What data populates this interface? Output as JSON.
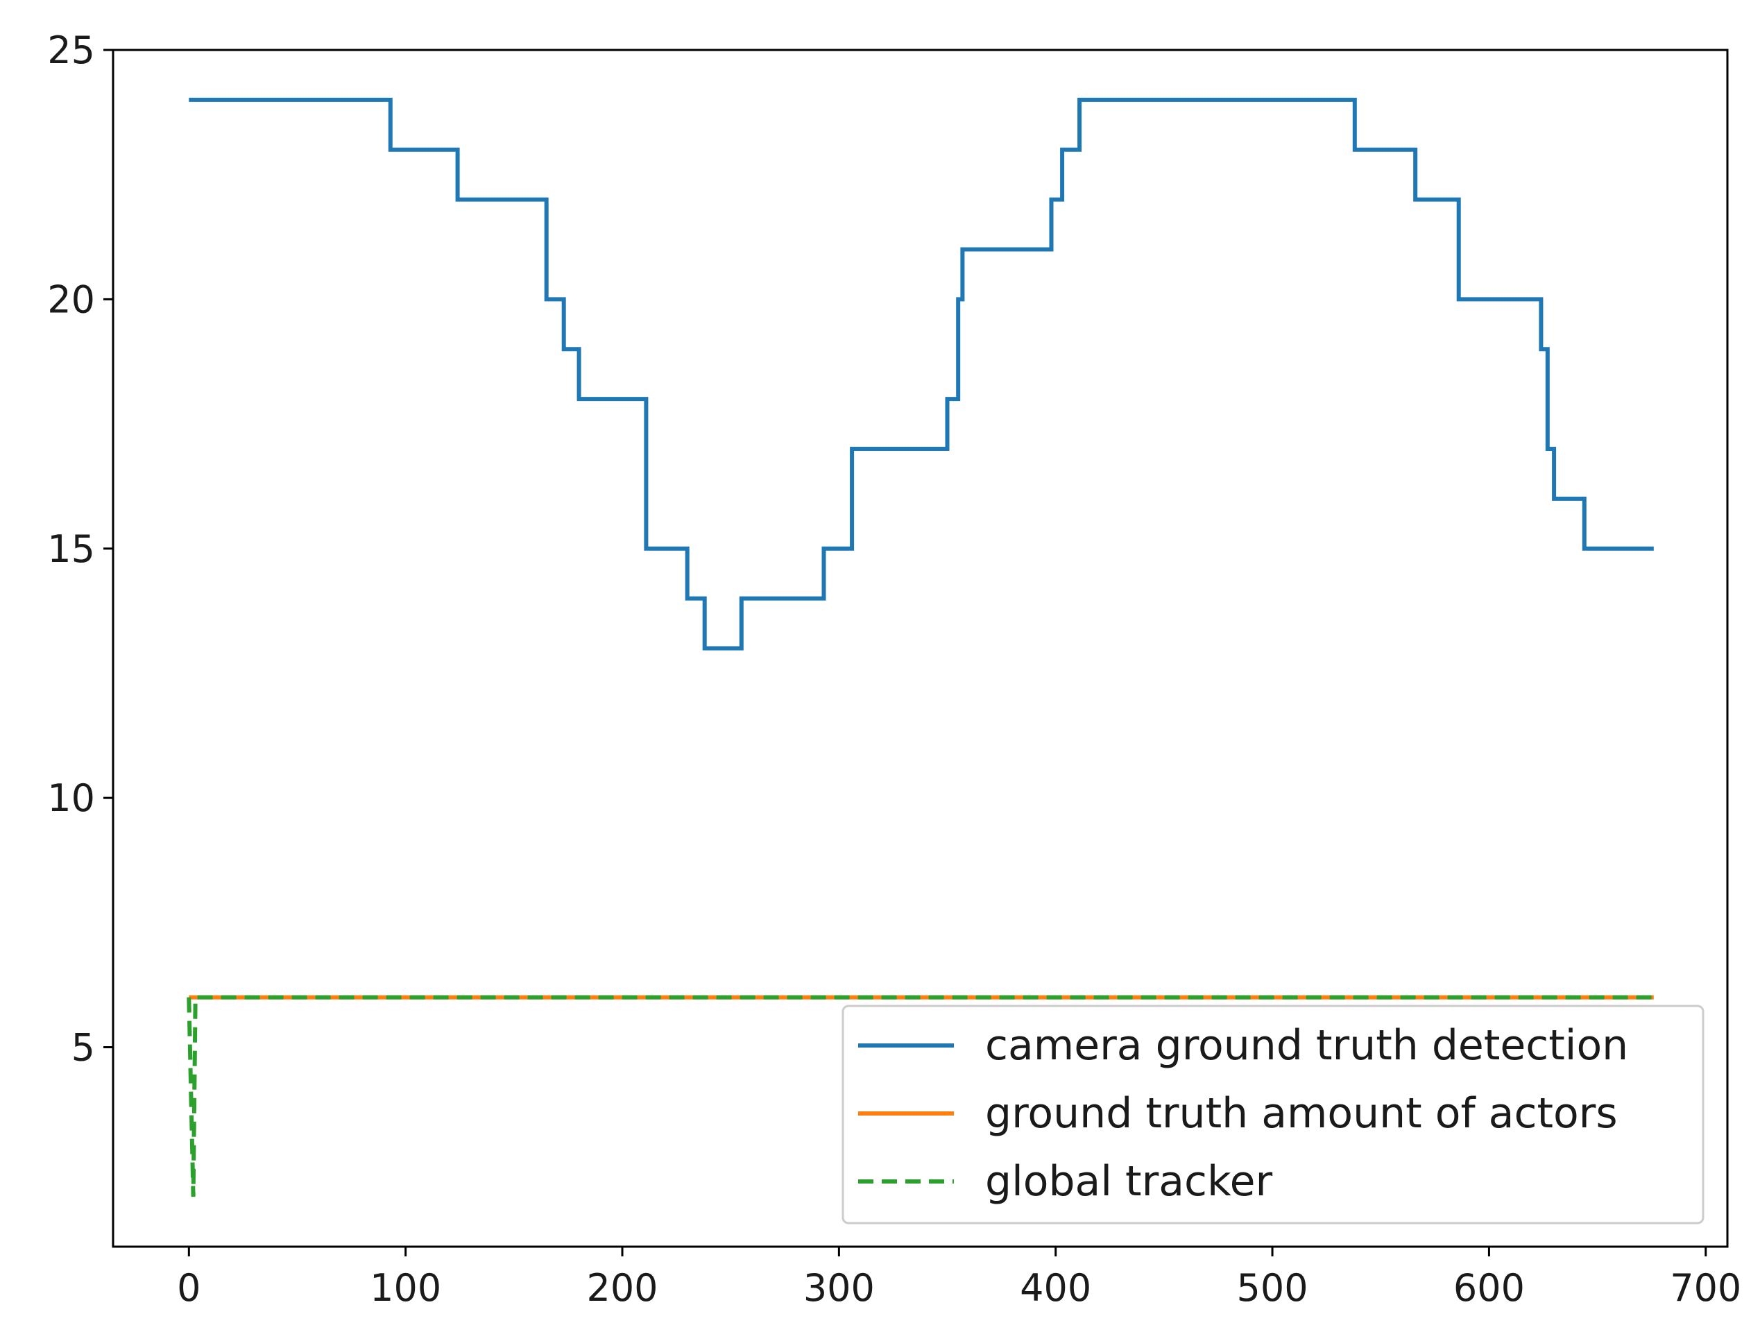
{
  "chart_data": {
    "type": "line",
    "xlim": [
      -35,
      710
    ],
    "ylim": [
      1,
      25
    ],
    "xticks": [
      0,
      100,
      200,
      300,
      400,
      500,
      600,
      700
    ],
    "yticks": [
      5,
      10,
      15,
      20,
      25
    ],
    "grid": false,
    "legend_position": "lower right",
    "series": [
      {
        "name": "camera ground truth detection",
        "color": "#1f77b4",
        "style": "solid",
        "step": true,
        "points": [
          [
            0,
            24
          ],
          [
            93,
            24
          ],
          [
            93,
            23
          ],
          [
            124,
            23
          ],
          [
            124,
            22
          ],
          [
            165,
            22
          ],
          [
            165,
            20
          ],
          [
            173,
            20
          ],
          [
            173,
            19
          ],
          [
            180,
            19
          ],
          [
            180,
            18
          ],
          [
            211,
            18
          ],
          [
            211,
            15
          ],
          [
            230,
            15
          ],
          [
            230,
            14
          ],
          [
            238,
            14
          ],
          [
            238,
            13
          ],
          [
            255,
            13
          ],
          [
            255,
            14
          ],
          [
            293,
            14
          ],
          [
            293,
            15
          ],
          [
            306,
            15
          ],
          [
            306,
            17
          ],
          [
            350,
            17
          ],
          [
            350,
            18
          ],
          [
            355,
            18
          ],
          [
            355,
            20
          ],
          [
            357,
            20
          ],
          [
            357,
            21
          ],
          [
            398,
            21
          ],
          [
            398,
            22
          ],
          [
            403,
            22
          ],
          [
            403,
            23
          ],
          [
            411,
            23
          ],
          [
            411,
            24
          ],
          [
            538,
            24
          ],
          [
            538,
            23
          ],
          [
            566,
            23
          ],
          [
            566,
            22
          ],
          [
            586,
            22
          ],
          [
            586,
            20
          ],
          [
            624,
            20
          ],
          [
            624,
            19
          ],
          [
            627,
            19
          ],
          [
            627,
            17
          ],
          [
            630,
            17
          ],
          [
            630,
            16
          ],
          [
            644,
            16
          ],
          [
            644,
            15
          ],
          [
            676,
            15
          ]
        ]
      },
      {
        "name": "ground truth amount of actors",
        "color": "#ff7f0e",
        "style": "solid",
        "step": false,
        "points": [
          [
            0,
            6
          ],
          [
            676,
            6
          ]
        ]
      },
      {
        "name": "global tracker",
        "color": "#2ca02c",
        "style": "dashed",
        "step": false,
        "points": [
          [
            0,
            6
          ],
          [
            2,
            2
          ],
          [
            3,
            6
          ],
          [
            676,
            6
          ]
        ]
      }
    ]
  }
}
